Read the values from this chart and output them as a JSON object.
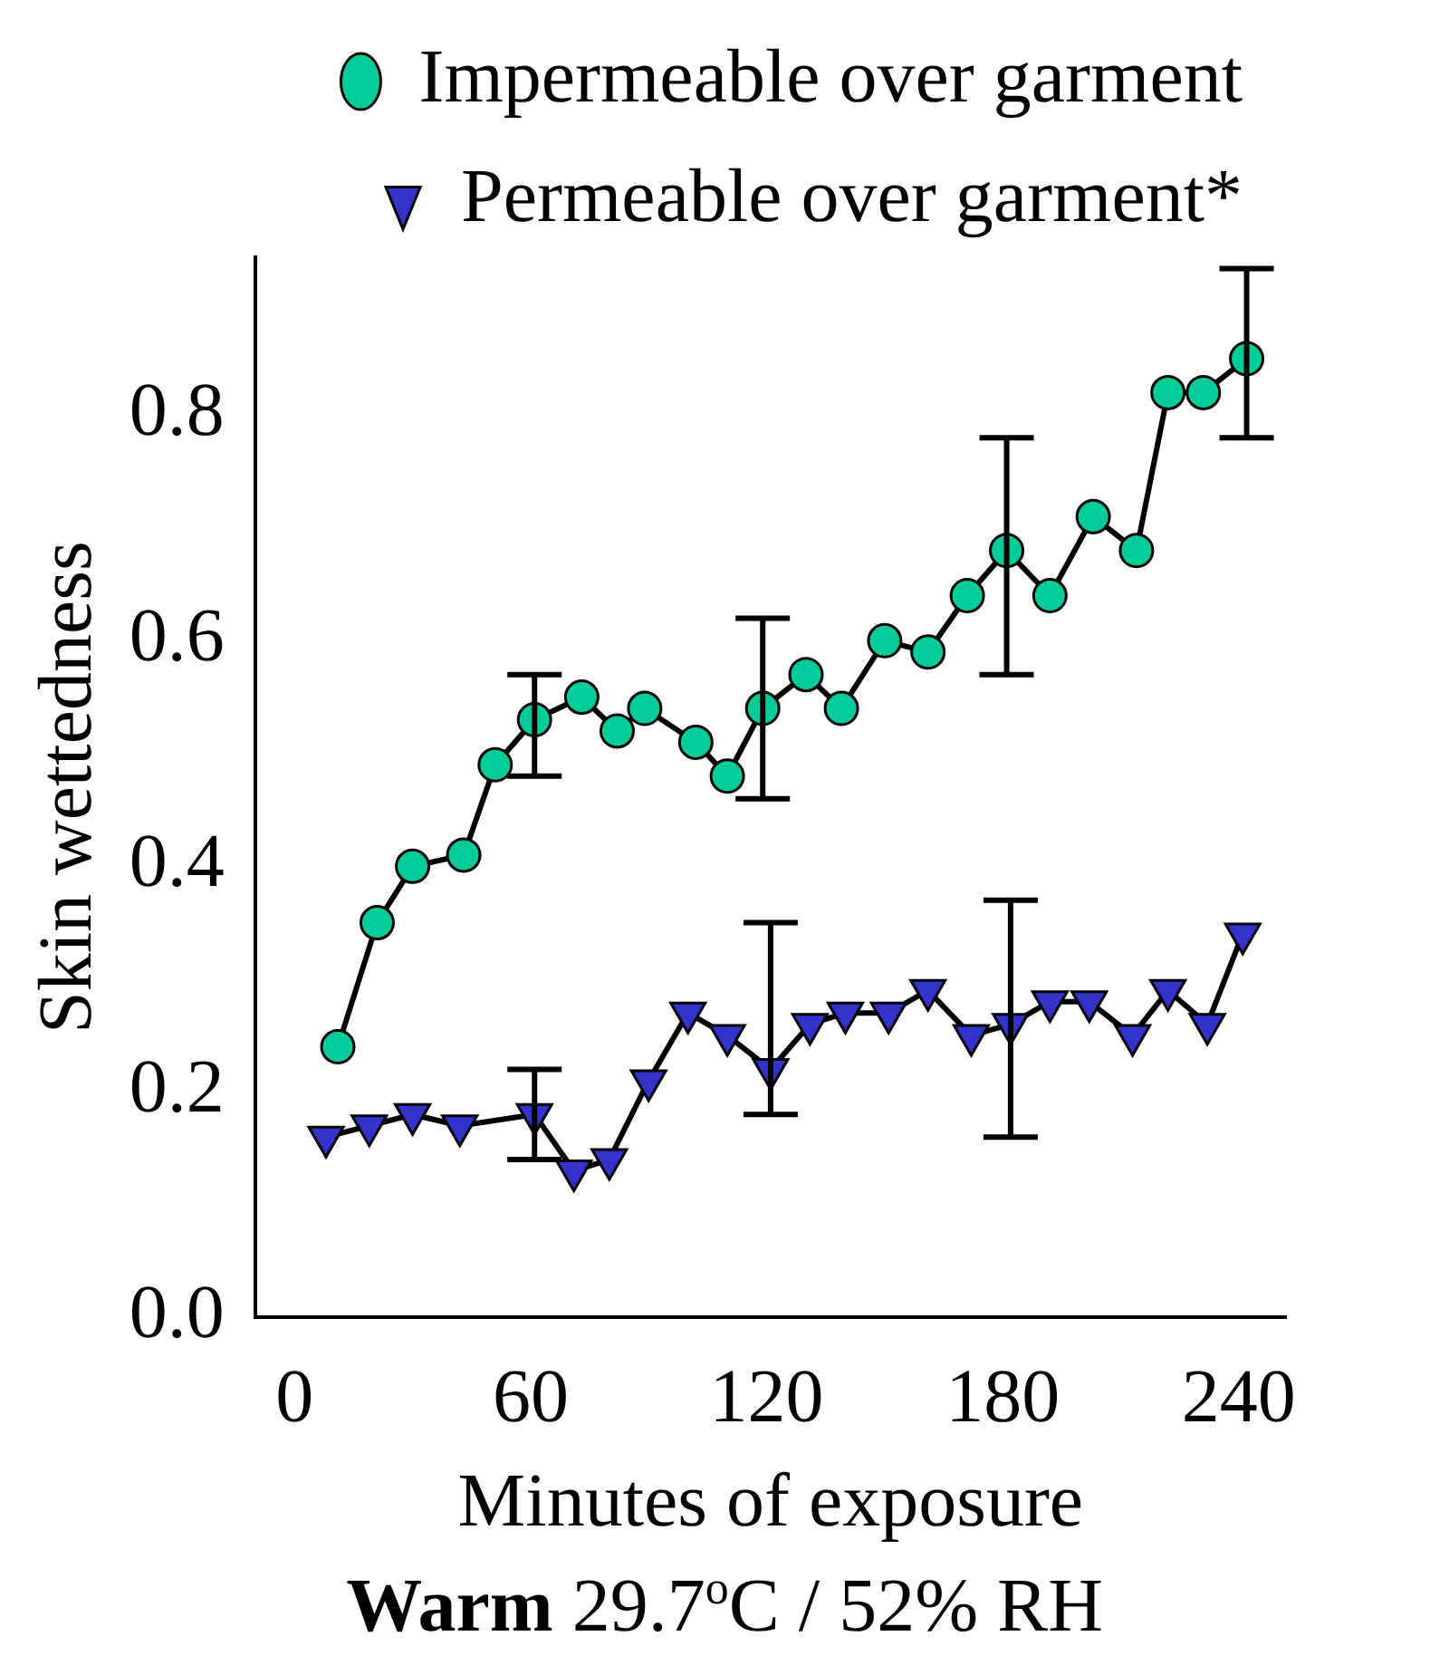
{
  "chart_data": {
    "type": "line",
    "xlabel": "Minutes of exposure",
    "ylabel": "Skin wettedness",
    "annotations": [
      "Warm",
      "29.7$^{o}$C / 52% RH"
    ],
    "xlim": [
      -10,
      252
    ],
    "xticks": [
      0,
      60,
      120,
      180,
      240
    ],
    "ylim": [
      0,
      0.94
    ],
    "yticks": [
      {
        "value": 0,
        "label": "0.0"
      },
      {
        "value": 0.2,
        "label": "0.2"
      },
      {
        "value": 0.4,
        "label": "0.4"
      },
      {
        "value": 0.6,
        "label": "0.6"
      },
      {
        "value": 0.8,
        "label": "0.8"
      }
    ],
    "grid": false,
    "legend": "top",
    "series": [
      {
        "name": "Impermeable over garment",
        "color": "#00cc99",
        "marker": "circle",
        "x": [
          11,
          21,
          30,
          43,
          51,
          61,
          73,
          82,
          89,
          102,
          110,
          119,
          130,
          139,
          150,
          161,
          171,
          181,
          192,
          203,
          214,
          222,
          231,
          242
        ],
        "values": [
          0.24,
          0.35,
          0.4,
          0.41,
          0.49,
          0.53,
          0.55,
          0.52,
          0.54,
          0.51,
          0.48,
          0.54,
          0.57,
          0.54,
          0.6,
          0.59,
          0.64,
          0.68,
          0.64,
          0.71,
          0.68,
          0.82,
          0.82,
          0.85
        ],
        "errors": [
          null,
          null,
          null,
          null,
          null,
          [
            0.48,
            0.57
          ],
          null,
          null,
          null,
          null,
          null,
          [
            0.46,
            0.62
          ],
          null,
          null,
          null,
          null,
          null,
          [
            0.57,
            0.78
          ],
          null,
          null,
          null,
          null,
          null,
          [
            0.78,
            0.93
          ]
        ]
      },
      {
        "name": "Permeable over garment*",
        "color": "#3333cc",
        "marker": "triangle",
        "x": [
          8,
          19,
          30,
          42,
          61,
          71,
          80,
          90,
          100,
          110,
          121,
          131,
          140,
          151,
          161,
          172,
          182,
          192,
          202,
          213,
          222,
          232,
          241
        ],
        "values": [
          0.16,
          0.17,
          0.18,
          0.17,
          0.18,
          0.13,
          0.14,
          0.21,
          0.27,
          0.25,
          0.22,
          0.26,
          0.27,
          0.27,
          0.29,
          0.25,
          0.26,
          0.28,
          0.28,
          0.25,
          0.29,
          0.26,
          0.34
        ],
        "errors": [
          null,
          null,
          null,
          null,
          [
            0.14,
            0.22
          ],
          null,
          null,
          null,
          null,
          null,
          [
            0.18,
            0.35
          ],
          null,
          null,
          null,
          null,
          null,
          [
            0.16,
            0.37
          ],
          null,
          null,
          null,
          null,
          null,
          null
        ]
      }
    ]
  }
}
